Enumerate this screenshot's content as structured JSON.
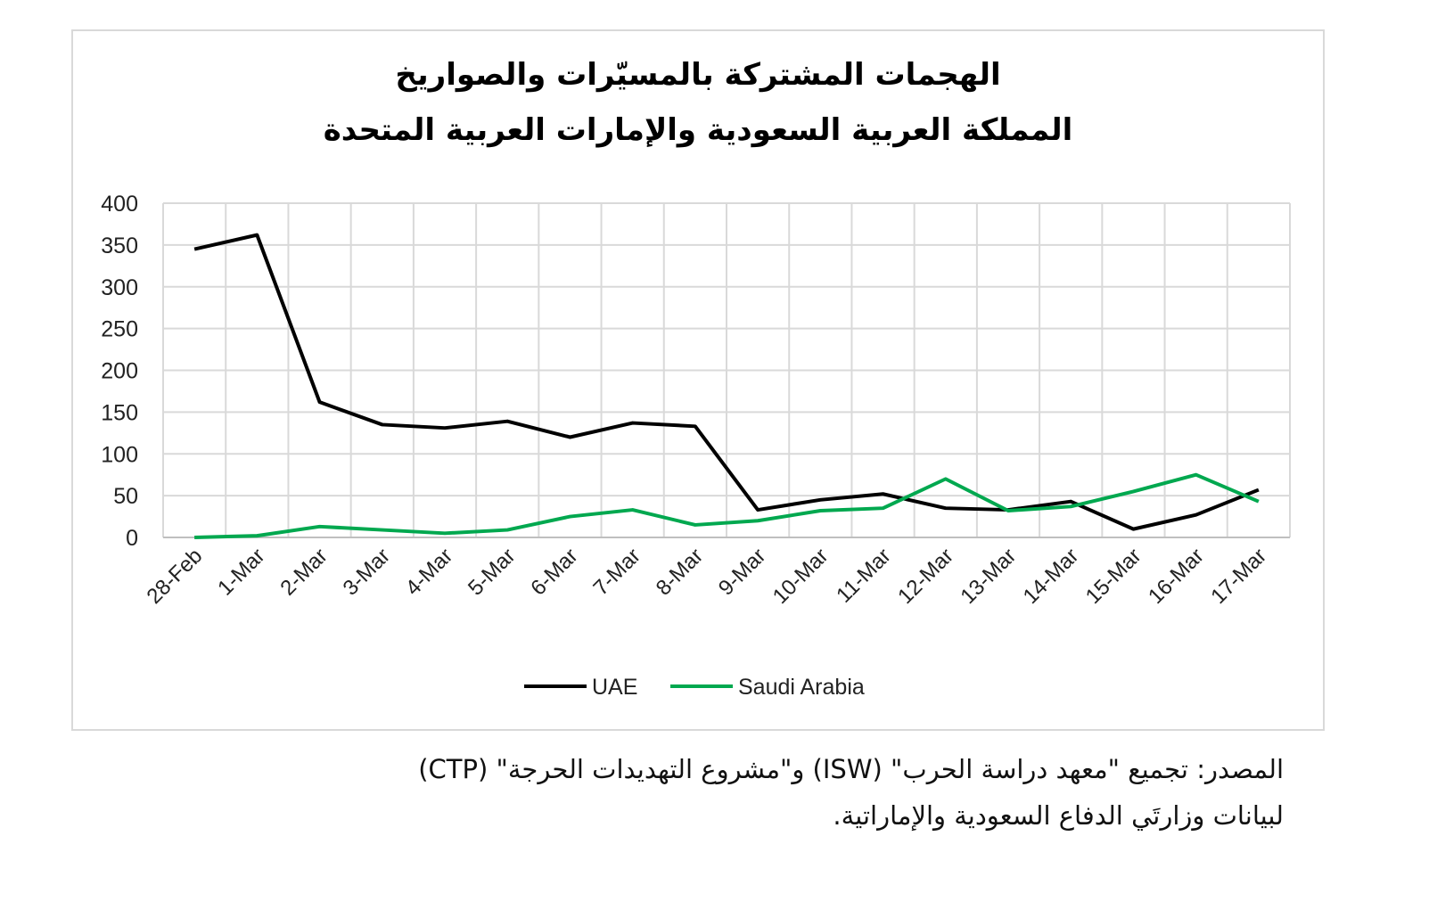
{
  "chart_data": {
    "type": "line",
    "title": [
      "الهجمات المشتركة بالمسيّرات والصواريخ",
      "المملكة العربية السعودية والإمارات العربية المتحدة"
    ],
    "xlabel": "",
    "ylabel": "",
    "ylim": [
      0,
      400
    ],
    "yticks": [
      "0",
      "50",
      "100",
      "150",
      "200",
      "250",
      "300",
      "350",
      "400"
    ],
    "categories": [
      "28-Feb",
      "1-Mar",
      "2-Mar",
      "3-Mar",
      "4-Mar",
      "5-Mar",
      "6-Mar",
      "7-Mar",
      "8-Mar",
      "9-Mar",
      "10-Mar",
      "11-Mar",
      "12-Mar",
      "13-Mar",
      "14-Mar",
      "15-Mar",
      "16-Mar",
      "17-Mar"
    ],
    "series": [
      {
        "name": "UAE",
        "color": "#000000",
        "values": [
          345,
          362,
          162,
          135,
          131,
          139,
          120,
          137,
          133,
          33,
          45,
          52,
          35,
          33,
          43,
          10,
          27,
          57
        ]
      },
      {
        "name": "Saudi Arabia",
        "color": "#00a84f",
        "values": [
          0,
          2,
          13,
          9,
          5,
          9,
          25,
          33,
          15,
          20,
          32,
          35,
          70,
          32,
          37,
          55,
          75,
          43
        ]
      }
    ],
    "grid": true,
    "legend_position": "bottom"
  },
  "caption": {
    "line1": "المصدر: تجميع \"معهد دراسة الحرب\" (ISW) و\"مشروع التهديدات الحرجة\" (CTP)",
    "line2": "لبيانات وزارتَي الدفاع السعودية والإماراتية."
  }
}
